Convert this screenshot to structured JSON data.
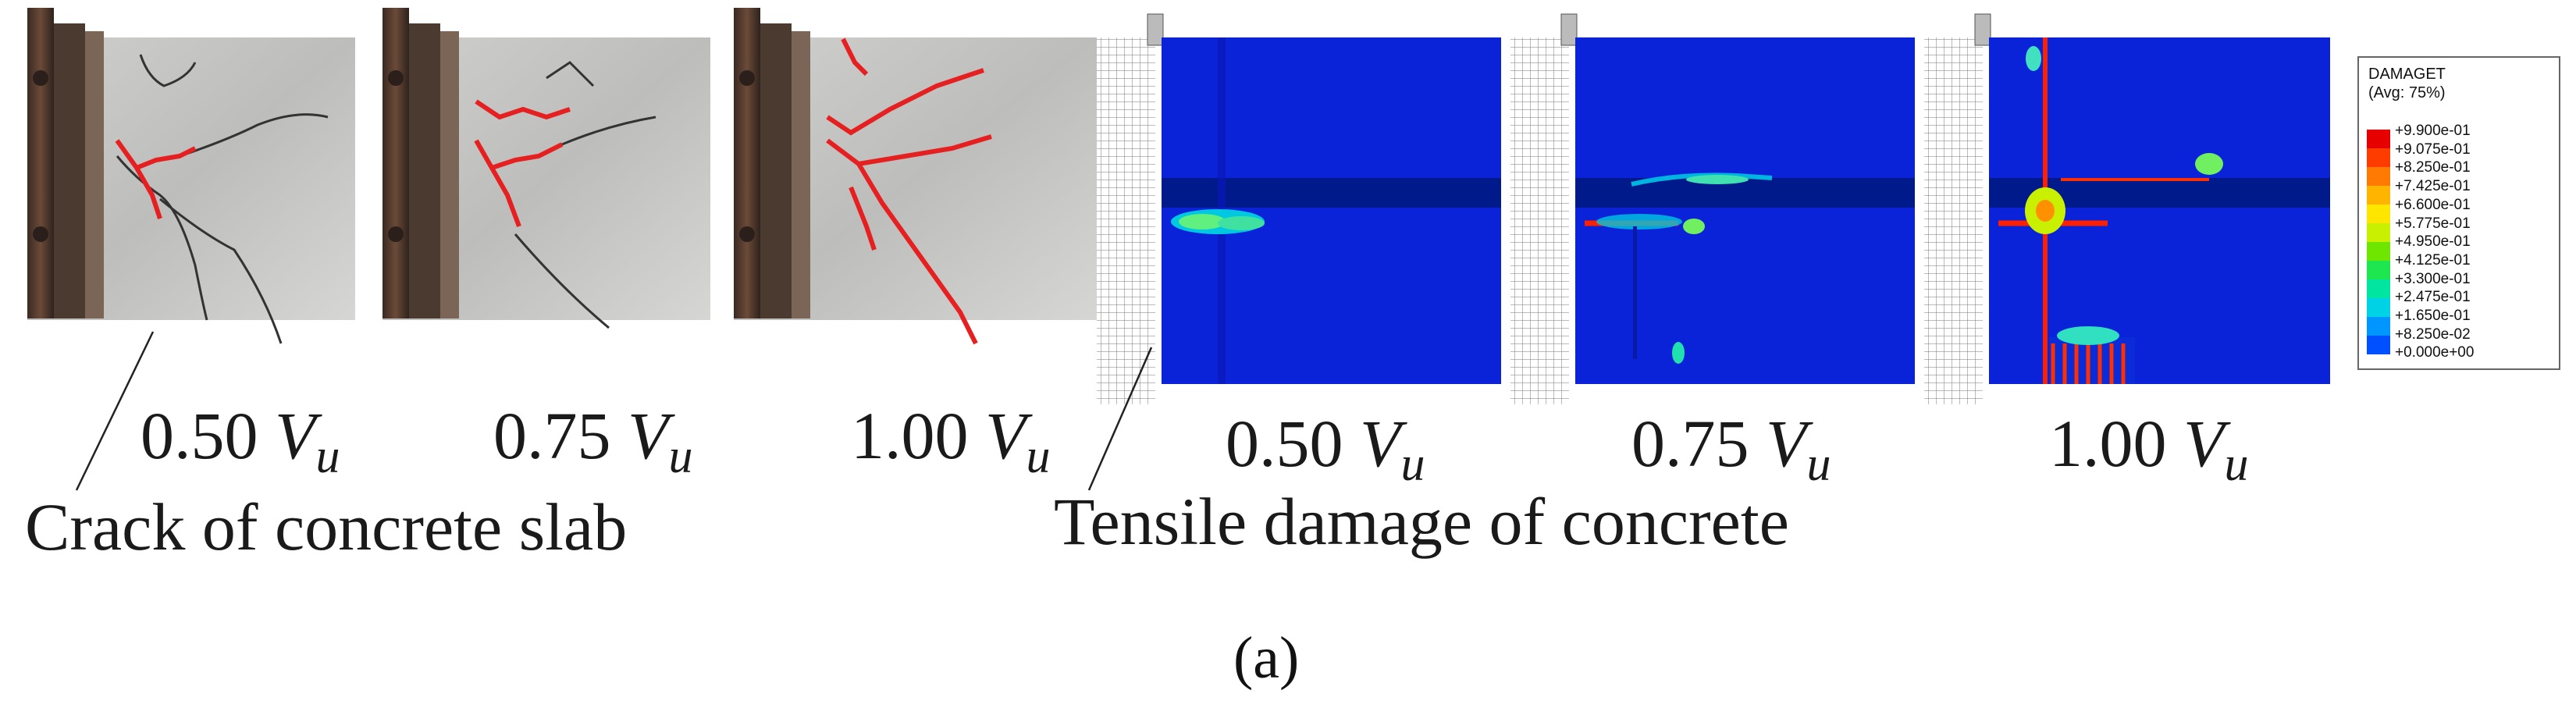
{
  "photo_labels": [
    {
      "value": "0.50",
      "symbol": "V",
      "subscript": "u"
    },
    {
      "value": "0.75",
      "symbol": "V",
      "subscript": "u"
    },
    {
      "value": "1.00",
      "symbol": "V",
      "subscript": "u"
    }
  ],
  "fe_labels": [
    {
      "value": "0.50",
      "symbol": "V",
      "subscript": "u"
    },
    {
      "value": "0.75",
      "symbol": "V",
      "subscript": "u"
    },
    {
      "value": "1.00",
      "symbol": "V",
      "subscript": "u"
    }
  ],
  "annotation_left": "Crack of concrete slab",
  "annotation_right": "Tensile damage of concrete",
  "sublabel": "(a)",
  "legend": {
    "title": "DAMAGET",
    "subtitle": "(Avg: 75%)",
    "ticks": [
      "+9.900e-01",
      "+9.075e-01",
      "+8.250e-01",
      "+7.425e-01",
      "+6.600e-01",
      "+5.775e-01",
      "+4.950e-01",
      "+4.125e-01",
      "+3.300e-01",
      "+2.475e-01",
      "+1.650e-01",
      "+8.250e-02",
      "+0.000e+00"
    ],
    "colors": [
      "#e60000",
      "#ff3c00",
      "#ff7a00",
      "#ffb400",
      "#ffe600",
      "#c8f000",
      "#6ee600",
      "#1ee650",
      "#00e6a0",
      "#00d2e6",
      "#0096ff",
      "#0050ff"
    ]
  }
}
